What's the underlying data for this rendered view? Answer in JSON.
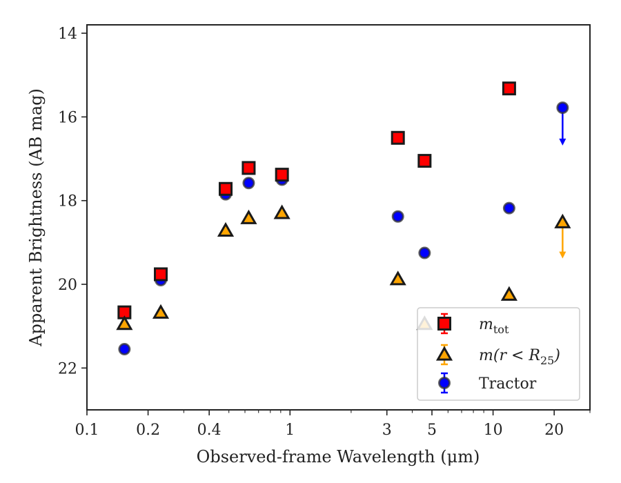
{
  "chart_data": {
    "type": "scatter",
    "xlabel": "Observed-frame Wavelength (μm)",
    "ylabel": "Apparent Brightness (AB mag)",
    "xscale": "log",
    "xlim": [
      0.1,
      30
    ],
    "ylim": [
      23,
      13.8
    ],
    "y_inverted": true,
    "x_ticks": [
      0.1,
      0.2,
      0.4,
      1,
      3,
      5,
      10,
      20
    ],
    "x_tick_labels": [
      "0.1",
      "0.2",
      "0.4",
      "1",
      "3",
      "5",
      "10",
      "20"
    ],
    "y_ticks": [
      14,
      16,
      18,
      20,
      22
    ],
    "y_tick_labels": [
      "14",
      "16",
      "18",
      "20",
      "22"
    ],
    "grid": false,
    "legend_position": "lower-right",
    "series": [
      {
        "name": "m_tot",
        "legend_main": "m",
        "legend_sub": "tot",
        "marker": "square",
        "color": "#ff0000",
        "error_color": "#ff0000",
        "points": [
          {
            "x": 0.153,
            "y": 20.67
          },
          {
            "x": 0.231,
            "y": 19.76
          },
          {
            "x": 0.482,
            "y": 17.72
          },
          {
            "x": 0.626,
            "y": 17.22
          },
          {
            "x": 0.913,
            "y": 17.38
          },
          {
            "x": 3.4,
            "y": 16.5
          },
          {
            "x": 4.6,
            "y": 17.05
          },
          {
            "x": 12.0,
            "y": 15.32
          }
        ]
      },
      {
        "name": "m(r < R25)",
        "legend_main": "m(r < R",
        "legend_sub": "25",
        "legend_tail": ")",
        "marker": "triangle",
        "color": "#ffa500",
        "error_color": "#ffa500",
        "points": [
          {
            "x": 0.153,
            "y": 20.95
          },
          {
            "x": 0.231,
            "y": 20.68
          },
          {
            "x": 0.482,
            "y": 18.72
          },
          {
            "x": 0.626,
            "y": 18.42
          },
          {
            "x": 0.913,
            "y": 18.3
          },
          {
            "x": 3.4,
            "y": 19.88
          },
          {
            "x": 4.6,
            "y": 20.95
          },
          {
            "x": 12.0,
            "y": 20.25
          },
          {
            "x": 22.0,
            "y": 18.52,
            "upper_limit": true,
            "arrow_to": 19.35
          }
        ]
      },
      {
        "name": "Tractor",
        "legend_main": "Tractor",
        "marker": "circle",
        "color": "#0000ff",
        "error_color": "#0000ff",
        "points": [
          {
            "x": 0.153,
            "y": 21.55
          },
          {
            "x": 0.231,
            "y": 19.9
          },
          {
            "x": 0.482,
            "y": 17.85
          },
          {
            "x": 0.626,
            "y": 17.58
          },
          {
            "x": 0.913,
            "y": 17.5
          },
          {
            "x": 3.4,
            "y": 18.38
          },
          {
            "x": 4.6,
            "y": 19.25
          },
          {
            "x": 12.0,
            "y": 18.18
          },
          {
            "x": 22.0,
            "y": 15.78,
            "upper_limit": true,
            "arrow_to": 16.65
          }
        ]
      }
    ]
  }
}
